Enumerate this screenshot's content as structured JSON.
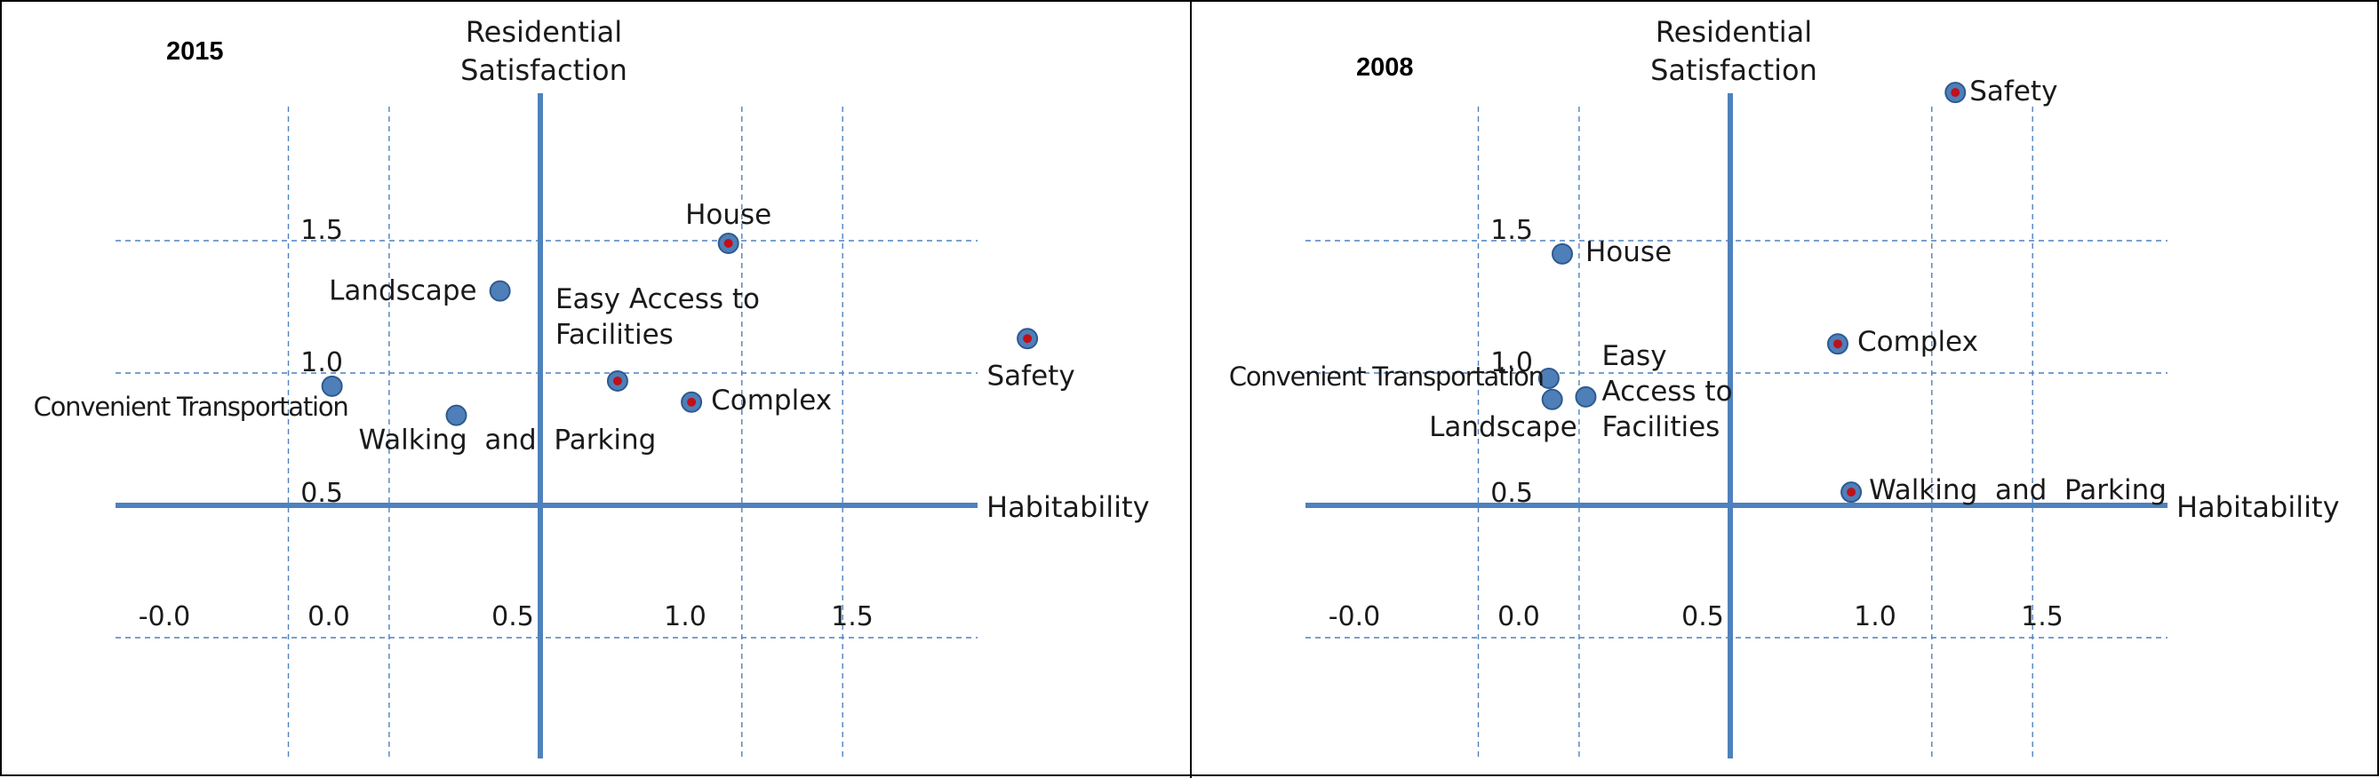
{
  "chart_data": [
    {
      "type": "scatter",
      "title": "2015",
      "xlabel": "Habitability",
      "ylabel": "Residential\nSatisfaction",
      "x_ticks": [
        "-0.0",
        "0.0",
        "0.5",
        "1.0",
        "1.5"
      ],
      "y_ticks": [
        "0.5",
        "1.0",
        "1.5"
      ],
      "points": [
        {
          "label": "House",
          "x": 0.56,
          "y": 1.49,
          "color": "#c0101a"
        },
        {
          "label": "Landscape",
          "x": -0.12,
          "y": 1.31,
          "color": "#1f4e8c"
        },
        {
          "label": "Easy Access to\nFacilities",
          "x": 0.23,
          "y": 0.97,
          "color": "#c0101a"
        },
        {
          "label": "Safety",
          "x": 1.45,
          "y": 1.13,
          "color": "#c0101a"
        },
        {
          "label": "Complex",
          "x": 0.45,
          "y": 0.89,
          "color": "#c0101a"
        },
        {
          "label": "Convenient Transportation",
          "x": -0.62,
          "y": 0.95,
          "color": "#1f4e8c"
        },
        {
          "label": "Walking  and  Parking",
          "x": -0.25,
          "y": 0.84,
          "color": "#1f4e8c"
        }
      ]
    },
    {
      "type": "scatter",
      "title": "2008",
      "xlabel": "Habitability",
      "ylabel": "Residential\nSatisfaction",
      "x_ticks": [
        "-0.0",
        "0.0",
        "0.5",
        "1.0",
        "1.5"
      ],
      "y_ticks": [
        "0.5",
        "1.0",
        "1.5"
      ],
      "points": [
        {
          "label": "Safety",
          "x": 0.67,
          "y": 2.06,
          "color": "#c0101a"
        },
        {
          "label": "House",
          "x": -0.5,
          "y": 1.45,
          "color": "#1f4e8c"
        },
        {
          "label": "Complex",
          "x": 0.32,
          "y": 1.11,
          "color": "#c0101a"
        },
        {
          "label": "Convenient Transportation",
          "x": -0.54,
          "y": 0.98,
          "color": "#1f4e8c"
        },
        {
          "label": "Landscape",
          "x": -0.53,
          "y": 0.9,
          "color": "#1f4e8c"
        },
        {
          "label": "Easy\nAccess to\nFacilities",
          "x": -0.43,
          "y": 0.91,
          "color": "#1f4e8c"
        },
        {
          "label": "Walking  and  Parking",
          "x": 0.36,
          "y": 0.55,
          "color": "#c0101a"
        }
      ]
    }
  ]
}
